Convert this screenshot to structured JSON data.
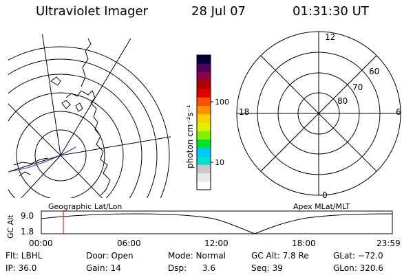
{
  "header": {
    "title": "Ultraviolet Imager",
    "date": "28 Jul 07",
    "time": "01:31:30 UT"
  },
  "colorbar": {
    "unit_label": "photon cm⁻²s⁻¹",
    "tick_100": "100",
    "tick_10": "10",
    "colors": [
      "#ffffff",
      "#e8e8e8",
      "#c8c8c8",
      "#00e0d0",
      "#00c8ff",
      "#00e030",
      "#80f000",
      "#e0f000",
      "#ffd000",
      "#ff9000",
      "#ff5000",
      "#e00000",
      "#b00000",
      "#900040",
      "#500060",
      "#000030"
    ]
  },
  "geo_panel": {
    "label": "Geographic Lat/Lon"
  },
  "apex_panel": {
    "label": "Apex MLat/MLT",
    "mlt_12": "12",
    "mlt_18": "18",
    "mlt_6": "6",
    "mlt_0": "0",
    "lat_60": "60",
    "lat_70": "70",
    "lat_80": "80"
  },
  "alt_plot": {
    "ylabel": "GC Alt",
    "ytick_top": "9.0",
    "ytick_bottom": "1.8",
    "xticks": [
      "00:00",
      "06:00",
      "12:00",
      "18:00",
      "23:59"
    ],
    "marker_time": "01:31:30"
  },
  "info": {
    "flt": "Flt: LBHL",
    "door": "Door: Open",
    "mode": "Mode: Normal",
    "gc_alt": "GC Alt: 7.8 Re",
    "glat": "GLat: −72.0",
    "ip": "IP: 36.0",
    "gain": "Gain: 14",
    "dsp": "Dsp:      3.6",
    "seq": "Seq: 39",
    "glon": "GLon: 320.6"
  }
}
